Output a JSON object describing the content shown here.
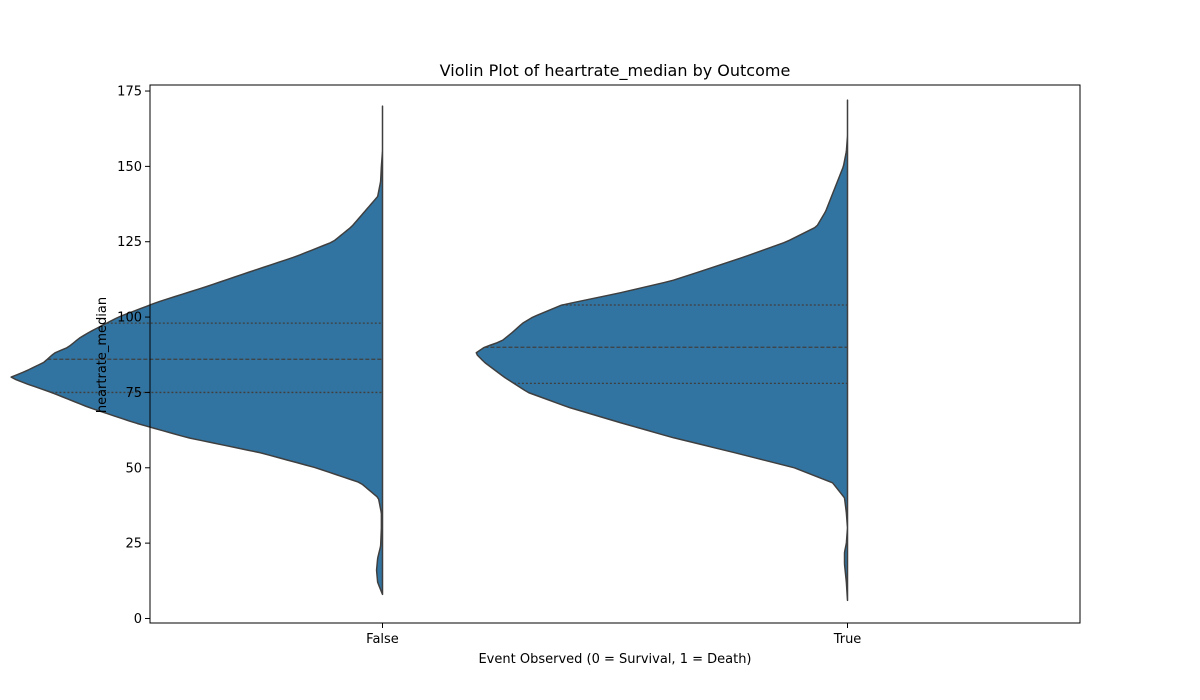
{
  "chart_data": {
    "type": "violin",
    "title": "Violin Plot of heartrate_median by Outcome",
    "xlabel": "Event Observed (0 = Survival, 1 = Death)",
    "ylabel": "heartrate_median",
    "ylim": [
      -1.5,
      177
    ],
    "yticks": [
      0,
      25,
      50,
      75,
      100,
      125,
      150,
      175
    ],
    "categories": [
      "False",
      "True"
    ],
    "color": "#3274a1",
    "edge_color": "#3f3f3f",
    "split": true,
    "inner": "quartile",
    "grid": false,
    "violins": [
      {
        "category": "False",
        "min": 8,
        "max": 170,
        "quartiles": {
          "q1": 75,
          "median": 86,
          "q3": 98
        },
        "density": [
          [
            8,
            0.0
          ],
          [
            12,
            0.013
          ],
          [
            16,
            0.016
          ],
          [
            20,
            0.013
          ],
          [
            24,
            0.005
          ],
          [
            30,
            0.003
          ],
          [
            35,
            0.003
          ],
          [
            40,
            0.011
          ],
          [
            45,
            0.059
          ],
          [
            50,
            0.179
          ],
          [
            55,
            0.329
          ],
          [
            60,
            0.524
          ],
          [
            65,
            0.668
          ],
          [
            70,
            0.789
          ],
          [
            75,
            0.89
          ],
          [
            78,
            0.96
          ],
          [
            80,
            1.0
          ],
          [
            82,
            0.96
          ],
          [
            85,
            0.91
          ],
          [
            88,
            0.883
          ],
          [
            90,
            0.845
          ],
          [
            93,
            0.815
          ],
          [
            95,
            0.788
          ],
          [
            100,
            0.71
          ],
          [
            105,
            0.604
          ],
          [
            110,
            0.476
          ],
          [
            115,
            0.357
          ],
          [
            120,
            0.235
          ],
          [
            125,
            0.133
          ],
          [
            130,
            0.083
          ],
          [
            135,
            0.048
          ],
          [
            140,
            0.013
          ],
          [
            145,
            0.005
          ],
          [
            150,
            0.003
          ],
          [
            155,
            0.0
          ],
          [
            160,
            0.0
          ],
          [
            170,
            0.0
          ]
        ]
      },
      {
        "category": "True",
        "min": 6,
        "max": 172,
        "quartiles": {
          "q1": 78,
          "median": 90,
          "q3": 104
        },
        "density": [
          [
            6,
            0.0
          ],
          [
            12,
            0.003
          ],
          [
            18,
            0.008
          ],
          [
            22,
            0.008
          ],
          [
            25,
            0.003
          ],
          [
            30,
            0.0
          ],
          [
            35,
            0.003
          ],
          [
            40,
            0.008
          ],
          [
            45,
            0.04
          ],
          [
            50,
            0.143
          ],
          [
            55,
            0.303
          ],
          [
            60,
            0.469
          ],
          [
            65,
            0.612
          ],
          [
            70,
            0.748
          ],
          [
            75,
            0.859
          ],
          [
            80,
            0.922
          ],
          [
            85,
            0.976
          ],
          [
            88,
            1.0
          ],
          [
            90,
            0.976
          ],
          [
            92,
            0.93
          ],
          [
            95,
            0.9
          ],
          [
            98,
            0.873
          ],
          [
            100,
            0.846
          ],
          [
            104,
            0.768
          ],
          [
            108,
            0.613
          ],
          [
            112,
            0.474
          ],
          [
            115,
            0.399
          ],
          [
            120,
            0.277
          ],
          [
            125,
            0.164
          ],
          [
            130,
            0.083
          ],
          [
            135,
            0.059
          ],
          [
            140,
            0.043
          ],
          [
            145,
            0.027
          ],
          [
            150,
            0.011
          ],
          [
            155,
            0.003
          ],
          [
            160,
            0.0
          ],
          [
            172,
            0.0
          ]
        ]
      }
    ]
  }
}
